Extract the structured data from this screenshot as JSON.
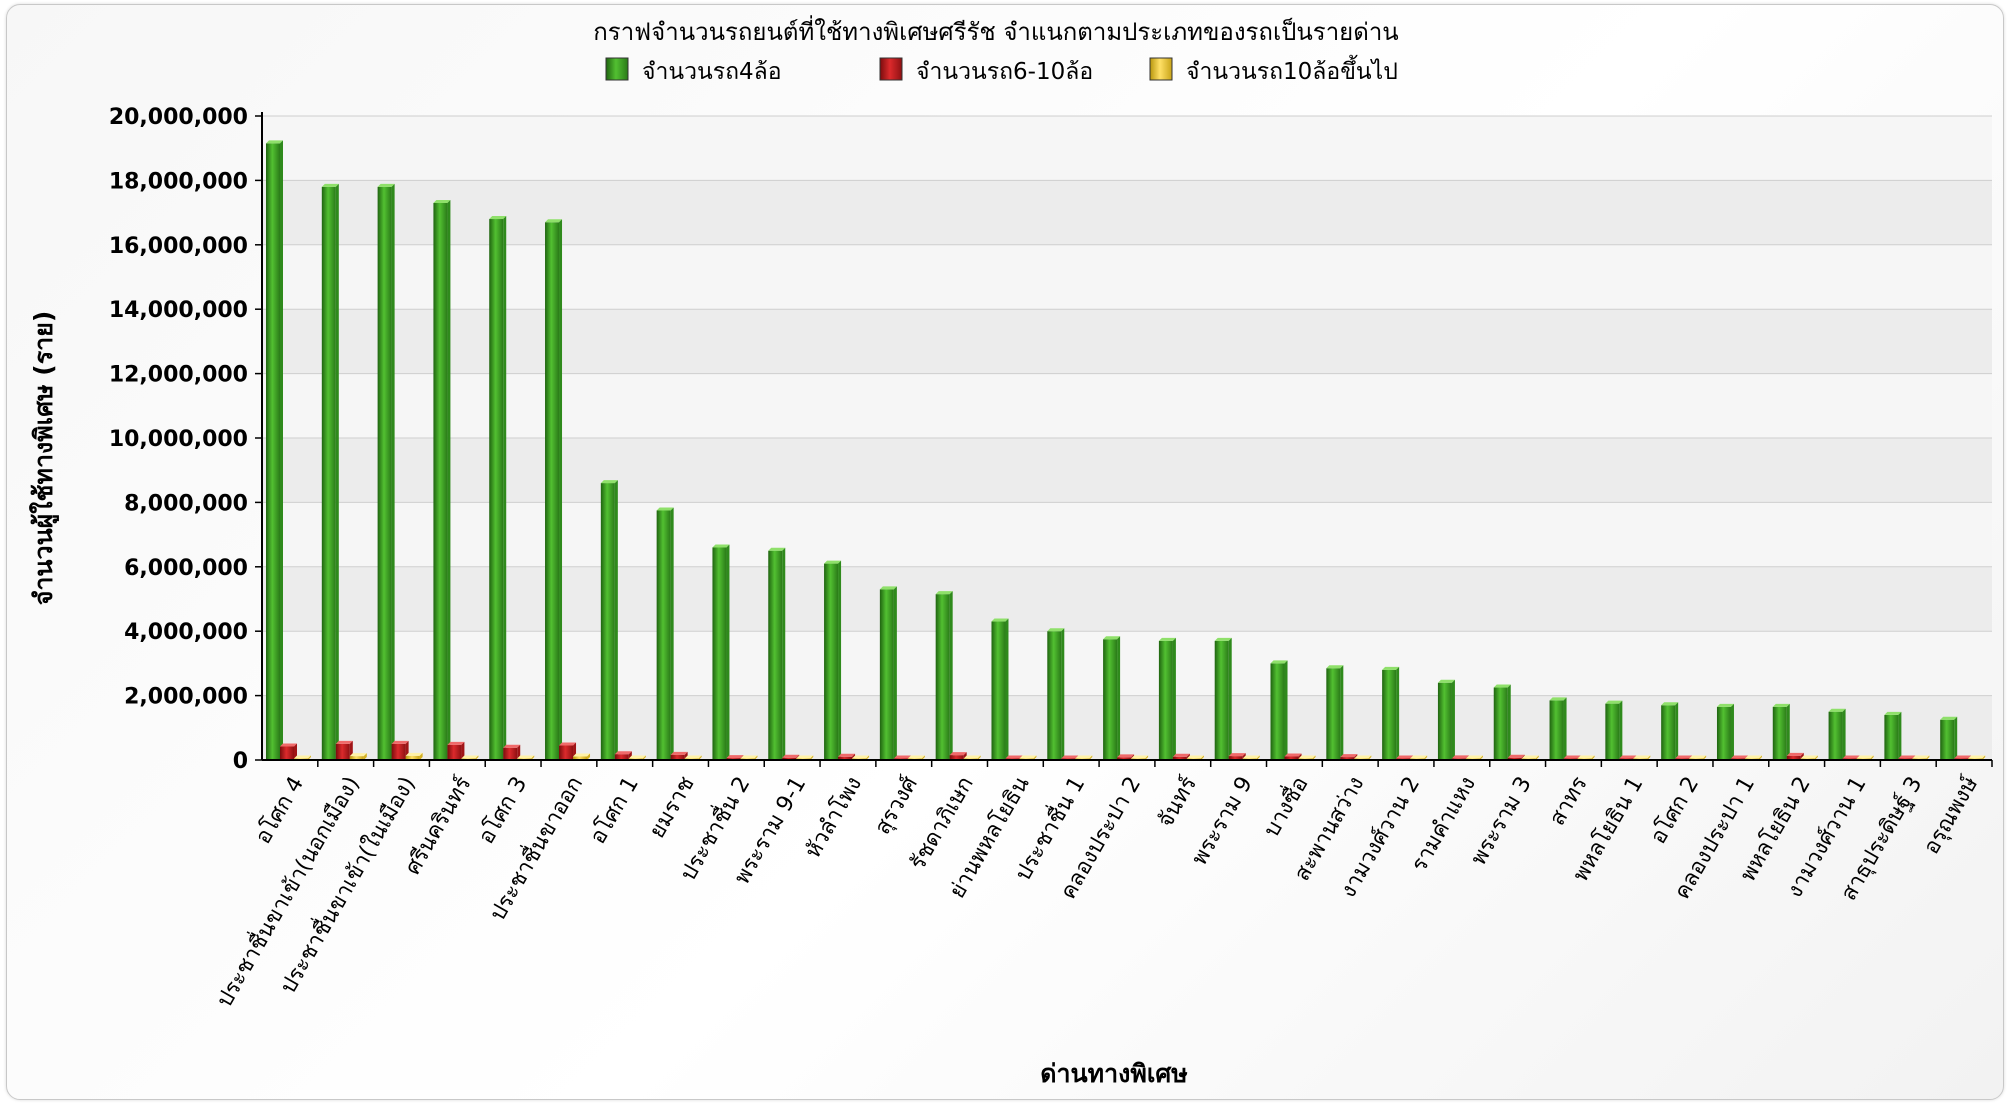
{
  "chart_data": {
    "type": "bar",
    "title": "กราฟจำนวนรถยนต์ที่ใช้ทางพิเศษศรีรัช จำแนกตามประเภทของรถเป็นรายด่าน",
    "xlabel": "ด่านทางพิเศษ",
    "ylabel": "จำนวนผู้ใช้ทางพิเศษ (ราย)",
    "ylim": [
      0,
      20000000
    ],
    "yticks": [
      "0",
      "2,000,000",
      "4,000,000",
      "6,000,000",
      "8,000,000",
      "10,000,000",
      "12,000,000",
      "14,000,000",
      "16,000,000",
      "18,000,000",
      "20,000,000"
    ],
    "grid": true,
    "legend_position": "top",
    "categories": [
      "อโศก 4",
      "ประชาชื่นขาเข้า(นอกเมือง)",
      "ประชาชื่นขาเข้า(ในเมือง)",
      "ศรีนครินทร์",
      "อโศก 3",
      "ประชาชื่นขาออก",
      "อโศก 1",
      "ยมราช",
      "ประชาชื่น 2",
      "พระราม 9-1",
      "หัวลำโพง",
      "สุรวงศ์",
      "รัชดาภิเษก",
      "ย่านพหลโยธิน",
      "ประชาชื่น 1",
      "คลองประปา 2",
      "จันทร์",
      "พระราม 9",
      "บางซื่อ",
      "สะพานสว่าง",
      "งามวงศ์วาน 2",
      "รามคำแหง",
      "พระราม 3",
      "สาทร",
      "พหลโยธิน 1",
      "อโศก 2",
      "คลองประปา 1",
      "พหลโยธิน 2",
      "งามวงศ์วาน 1",
      "สาธุประดิษฐ์ 3",
      "อรุณพงษ์"
    ],
    "series": [
      {
        "name": "จำนวนรถ4ล้อ",
        "color": "#3fa025",
        "values": [
          19150000,
          17800000,
          17800000,
          17300000,
          16800000,
          16700000,
          8600000,
          7750000,
          6600000,
          6500000,
          6100000,
          5300000,
          5150000,
          4300000,
          4000000,
          3750000,
          3700000,
          3700000,
          3000000,
          2850000,
          2800000,
          2400000,
          2250000,
          1850000,
          1750000,
          1700000,
          1650000,
          1650000,
          1500000,
          1400000,
          1250000
        ]
      },
      {
        "name": "จำนวนรถ6-10ล้อ",
        "color": "#c0181a",
        "values": [
          420000,
          500000,
          500000,
          470000,
          380000,
          450000,
          180000,
          160000,
          60000,
          70000,
          100000,
          40000,
          150000,
          30000,
          40000,
          80000,
          100000,
          120000,
          110000,
          90000,
          40000,
          50000,
          70000,
          30000,
          20000,
          40000,
          30000,
          130000,
          30000,
          20000,
          30000
        ]
      },
      {
        "name": "จำนวนรถ10ล้อขึ้นไป",
        "color": "#f5d23a",
        "values": [
          20000,
          120000,
          130000,
          40000,
          20000,
          110000,
          20000,
          10000,
          10000,
          10000,
          10000,
          10000,
          10000,
          10000,
          10000,
          10000,
          10000,
          10000,
          10000,
          10000,
          10000,
          10000,
          10000,
          10000,
          10000,
          10000,
          10000,
          10000,
          10000,
          10000,
          10000
        ]
      }
    ]
  }
}
